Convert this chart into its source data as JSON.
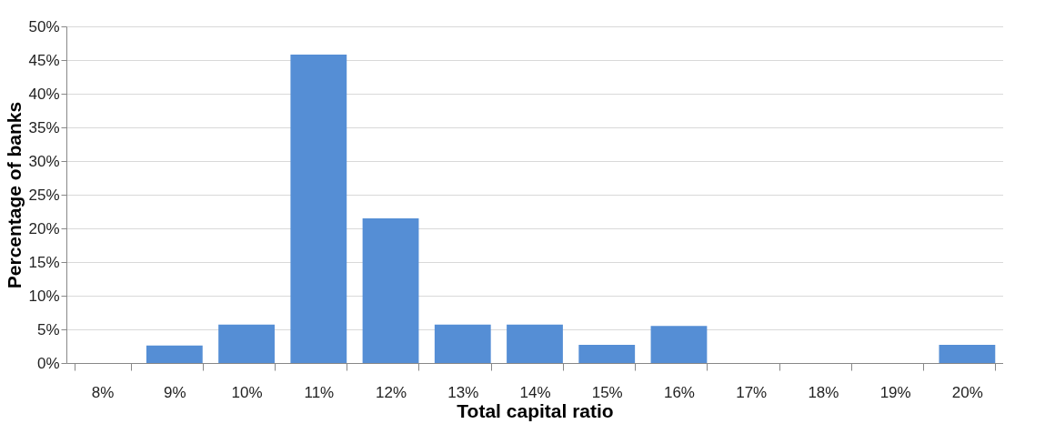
{
  "chart_data": {
    "type": "bar",
    "xlabel": "Total capital ratio",
    "ylabel": "Percentage of banks",
    "categories": [
      "8%",
      "9%",
      "10%",
      "11%",
      "12%",
      "13%",
      "14%",
      "15%",
      "16%",
      "17%",
      "18%",
      "19%",
      "20%"
    ],
    "values": [
      0,
      2.6,
      5.7,
      45.8,
      21.5,
      5.7,
      5.7,
      2.7,
      5.5,
      0,
      0,
      0,
      2.7
    ],
    "color": "#558ed5",
    "ylim": [
      0,
      50
    ],
    "yticks": [
      {
        "value": 0,
        "label": "0%"
      },
      {
        "value": 5,
        "label": "5%"
      },
      {
        "value": 10,
        "label": "10%"
      },
      {
        "value": 15,
        "label": "15%"
      },
      {
        "value": 20,
        "label": "20%"
      },
      {
        "value": 25,
        "label": "25%"
      },
      {
        "value": 30,
        "label": "30%"
      },
      {
        "value": 35,
        "label": "35%"
      },
      {
        "value": 40,
        "label": "40%"
      },
      {
        "value": 45,
        "label": "45%"
      },
      {
        "value": 50,
        "label": "50%"
      }
    ],
    "grid": "y"
  }
}
